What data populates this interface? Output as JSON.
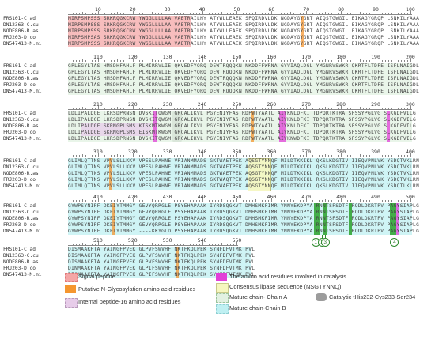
{
  "sequence_names": [
    "FRS101-C.ad",
    "DN12363-C.cu",
    "NODE806-R.as",
    "FRJ203-D.co",
    "DN547413-M.mi"
  ],
  "ruler_numbers": [
    [
      "10",
      "20",
      "30",
      "40",
      "50",
      "60",
      "70",
      "80",
      "90",
      "100"
    ],
    [
      "110",
      "120",
      "130",
      "140",
      "150",
      "160",
      "170",
      "180",
      "190",
      "200"
    ],
    [
      "210",
      "220",
      "230",
      "240",
      "250",
      "260",
      "270",
      "280",
      "290",
      "300"
    ],
    [
      "310",
      "320",
      "330",
      "340",
      "350",
      "360",
      "370",
      "380",
      "390",
      "400"
    ],
    [
      "410",
      "420",
      "430",
      "440",
      "450",
      "460",
      "470",
      "480",
      "490",
      "500"
    ],
    [
      "510",
      "520",
      "530",
      "540",
      "550"
    ]
  ],
  "blocks": [
    [
      "MIRPSMPSSS SRKRQGKCRW YWGGLLLLAA VAETRAILHY ATYWLLEAEK SPQIRDVLDK NGDAYGYGRT AIQSTGWGIL EIKAGYGRQP LSNKILYAAA",
      "MIRPSMPSSS SRKRQGKCRW YWGGLLLLAA VAETRAILHY ATYWLLEAEK SPQIRDVLDK NGDAYGYGRT AIQSTGWGIL EIKAGYGRQP LSNKILYAAA",
      "MIRPSMPSSS SRKRQGKCRW YWGGLLLLAA VAETRAILHY ATYWLLEAEK SPQIRDVLDK NGDAYGYGRT AIQSTGWGIL EIKAGYGRQP LSNKILYAAA",
      "MIRPSMPSAS SRKRQGKCRW YWGGLLLLAA VAETRAILHY ATYWLLEAEK SPQIRDVLDK NGDAYGYGRT AIQSTGWGIL EIKAGYGRQP LSNKILYAAA",
      "MIRPSMPSSS SRKRQGKCRW YWGGLLLLAA VAETRAILHY ATYWLLEAEK SPQIRDVLDK NGDAYGYGRT AIQSTGWGIL EIKAGYGRQP LSNKILYAAA"
    ],
    [
      "GPLEGYLTAS HMSDHFAHLF PLMIRRVLIE QKVEDFYQRQ DEWTRQQQKN NKDDFFWRNA GYVIAQLDGL YMGNRVSWKR QKRTFLTDFE ISFLNAIGDL",
      "GPLEGYLTAS HMSDHFAHLF PLMIRRVLIE QKVEDFYQRQ DEWTRQQQKN NKDDFFWRNA GYVIAQLDGL YMGNRVSWKR QKRTFLTDFE ISFLNAIGDL",
      "GPLEGYLTAS HMSDHFAHLF PLMIRRVLIE QKVEDFYQRQ DEWTRQQQKN NKDDFFWRNA GYVIAQLDGL YMGNRVSWKR QKRTFLTDFE ISFLNAIGDL",
      "GPLEGYLTAS HMSDHFAHLF PLMIRRVLIE QKVEDFYQRQ DEWTRQQQKN NKDDFFWRNA GYVIAQLDGL YMGNRVSWKR QKRTFLTDFE ISFLNAIGDL",
      "GPLEGYLTAS HMSDHFAHLF PLMIRRVLIE QKVEDFYQRQ DEWTRQQQKN NKDDFFWRNA GYVIAQLDGL YMGNRVSWKR QKRTFLTDFE ISFLNAIGDL"
    ],
    [
      "LDLIPALDGE LKRSDPRNSN DVSKITQWGM GRCALIKVL PGYENIYFAS RDPWTYAATL AIYKNLDFKI TDPQRTKTRA SFSSYPGLVG SLKGDFVILG",
      "LDLIPALDGE LKRSDPRNSN DVSKITQWGM GRCALIKVL PGYENIYFAS RDPWTYAATL AIYKNLDFKI TDPQRTKTRA SFSSYPGLVG SLKGDFVILG",
      "LDLIPALDGE SKRNGPLSMS KISKMTKWGM GRCALIKVL PGYENIYFAS RDPWTYAATL AIYKNLDFKI TDPQRTKTRA SFSSYPGLVG SLKGDFVILG",
      "LDLIPALDGE SKRNGPLSMS EISKMTKWGM GRCALIKVL PGYENIYFAS RDPWTYAATL AIYKNLDFKI TDPQRTKTRA SFSSYPGLVG SLKGDFVILG",
      "LDLIPALDGE LKRSDPRNSN DVSKITQWGM GRCALIKVL PGYENIYFAS RDPWTYAATL AIYKNWDFKI TDPQRTKTRA SFSSYPGLVG SLKGDFVILG"
    ],
    [
      "GLIMLQTTNS VPVLSLLKKV VPESLPAHNE VRIANMMADS GKTWAETPEK AQSGTYNNQF MILDTKKIKL QKSLKDGTIV IIEQVPNLVK YSDQTVKLRN",
      "GLIMLQTTNS VPVLSLLKKV VPESLPAHNE VRIANMMADS GKTWAETPEK AQSGTYNNQF MILDTKKIKL QKSLKDGTIV IIEQVPNLVK YSDQTVKLRN",
      "GLIMLQTTNS VPVLSLLKKV VPESLPAHNE VRIANMMADS GKTWAETPEK AQSGTYNNQF MILDTKKIKL QKSLKDGTIV IIEQVPNLVK YSDQTVKLRN",
      "GLIMLQTTNS VPVLSLLKKV VPESLPAHNE VRIANMMADS GKTWAQTPEK AQSGTYNNQF MILDTKKIKL RKSLKDGTIV IIEQVPNLVK YSDQTVKLRN",
      "GLIMLQTTNS VPVLSLLKKV VPESLPAHNE VRIANMMADS GKTWAETPEK AQSGTYNNQF MILDTKKIKL QKSLKDGTIV IIEQVPNLVK YSDQTLKLRN"
    ],
    [
      "GYWPSYNIPF DKEIYTMMGY GEVYQRRGLE PSYEHAPAAK IYRDSQGKVT DMHSMKFIMR YNNYEKDPYA RNNTSFSDTF RQDLDKRTPV PAGYSIAPLG",
      "GYWPSYNIPF DKEIYTMMGY GEVYQRRGLE PSYEHAPAAK IYRDSQGKVT DMHSMKFIMR YNNYEKDPYA RNNTSFSDTF RQDLDKRTPV PAGYSIAPLG",
      "GYWPSYNIPF DKEIYTMMGY GEVYQRRGLE PSYEHAPAAK IYRDSQGKVT DMHSMKFIMR YNNYEKDPYA RNNTSFSDTF RQDLDKRTPV PAGYSIAPLG",
      "GYWPSYNIPF DKEIYTMMGY GEVYQRRGLE PSYEHAPAAK IYRDSQGKVT DMHSMKFIMR YNNYEKDPYA RNNTSFSDTF RQDLDKRTPV PAGYSIAPLG",
      "GYWPSYNIPF DKEIYTMMGY ----KKYGLD PSYEHAPAAK IYRDSQGKVT DMHSMKFIMR YNNYEKDPYA RNNTSFSDTF RQDLDKRTPV PAGYSIAPLG"
    ],
    [
      "DISMAAKFTA YAINGFPVEK GLPVFSWVHF NKTFKQLPEK SYNFDFVTMK PVL",
      "DISMAAKFTA YAINGFPVEK GLPVFSWVHF NKTFKQLPEK SYNFDFVTMK PVL",
      "DISMAAKFTA YAINGFPVEK GLPVFSWVHF NKTFKQLPEK SYNFDFVTMK PVL",
      "DINMAAKFTA YAINGFPVEK GLPIFSWVHF NKTFKQLPEK SYNFDFVTMK PVL",
      "DISMAAKFTA YAINGFPVEK GLPIFSWVHF NKTFKQLPEK SYNFDFVTMK PVL"
    ]
  ],
  "markers": [
    "1",
    "2",
    "3",
    "4"
  ],
  "legend": {
    "signal_peptide": "Signal peptide",
    "n_glycosylation": "Putative N-Glycosylation amino acid residues",
    "internal_peptide": "Internal peptide-16 amino acid residues",
    "catalysis": "The amino acid residues involved in catalysis",
    "consensus": "Consensus lipase sequence (NSGTYNNQ)",
    "chain_a": "Mature chain- Chain A",
    "chain_b": "Mature chain-Chain B",
    "catalytic": "Catalytic tHis232-Cys233-Ser234"
  },
  "colors": {
    "signal_peptide": "#f4a7a7",
    "n_glycosylation": "#f5962f",
    "internal_peptide": "#e7cce9",
    "catalysis": "#e23fd8",
    "consensus": "#f6f7bf",
    "chain_a": "#e2f1e2",
    "chain_b": "#bff0f2",
    "catalytic": "#9c9c9c",
    "dark_green": "#2aa02a"
  }
}
